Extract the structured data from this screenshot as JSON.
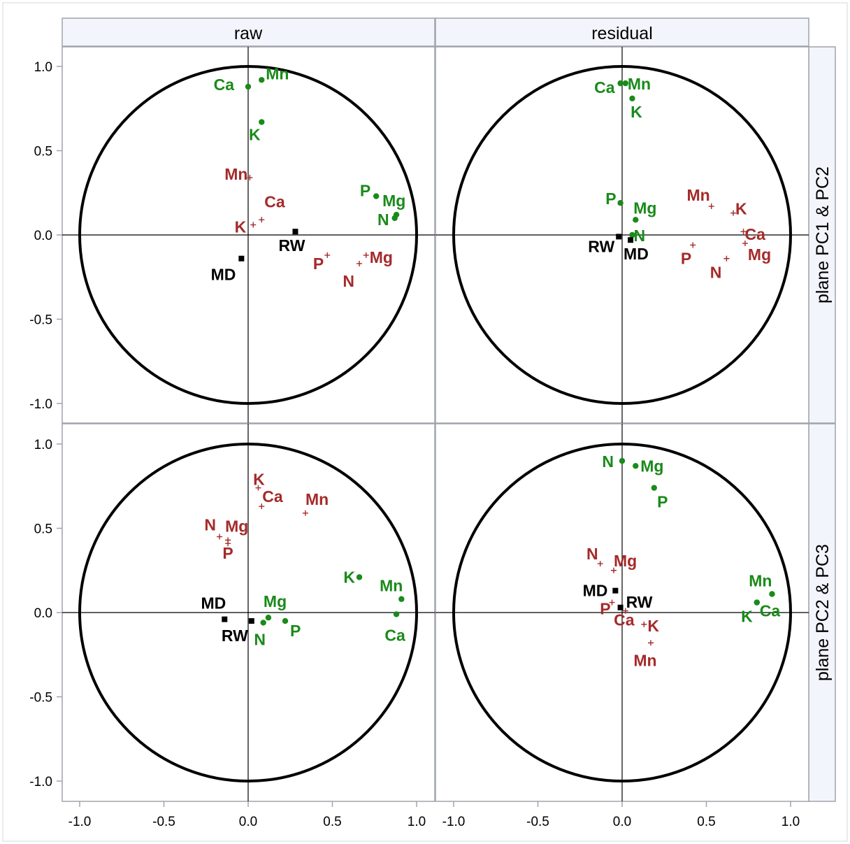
{
  "strips": {
    "col": [
      "raw",
      "residual"
    ],
    "row": [
      "plane PC1 & PC2",
      "plane PC2 & PC3"
    ]
  },
  "colors": {
    "variables_active": "#1a8a1a",
    "variables_supplementary": "#a52a2a",
    "samples": "#000000",
    "strip_fill": "#f2f5fc",
    "frame": "#a0a4aa"
  },
  "chart_data": {
    "type": "scatter",
    "axes": {
      "xlim": [
        -1.1,
        1.1
      ],
      "ylim": [
        -1.1,
        1.1
      ],
      "ticks": [
        -1.0,
        -0.5,
        0.0,
        0.5,
        1.0
      ],
      "tick_labels": [
        "-1.0",
        "-0.5",
        "0.0",
        "0.5",
        "1.0"
      ]
    },
    "panels": [
      {
        "col": "raw",
        "row": "plane PC1 & PC2",
        "green": [
          {
            "label": "Ca",
            "x": 0.0,
            "y": 0.88
          },
          {
            "label": "Mn",
            "x": 0.08,
            "y": 0.92
          },
          {
            "label": "K",
            "x": 0.08,
            "y": 0.67
          },
          {
            "label": "P",
            "x": 0.76,
            "y": 0.23
          },
          {
            "label": "Mg",
            "x": 0.88,
            "y": 0.12
          },
          {
            "label": "N",
            "x": 0.87,
            "y": 0.1
          }
        ],
        "red": [
          {
            "label": "Mn",
            "x": 0.01,
            "y": 0.34
          },
          {
            "label": "Ca",
            "x": 0.08,
            "y": 0.09
          },
          {
            "label": "K",
            "x": 0.03,
            "y": 0.06
          },
          {
            "label": "P",
            "x": 0.47,
            "y": -0.12
          },
          {
            "label": "Mg",
            "x": 0.7,
            "y": -0.12
          },
          {
            "label": "N",
            "x": 0.66,
            "y": -0.17
          }
        ],
        "black": [
          {
            "label": "RW",
            "x": 0.28,
            "y": 0.02
          },
          {
            "label": "MD",
            "x": -0.04,
            "y": -0.14
          }
        ]
      },
      {
        "col": "residual",
        "row": "plane PC1 & PC2",
        "green": [
          {
            "label": "Ca",
            "x": -0.01,
            "y": 0.9
          },
          {
            "label": "Mn",
            "x": 0.02,
            "y": 0.9
          },
          {
            "label": "K",
            "x": 0.06,
            "y": 0.81
          },
          {
            "label": "P",
            "x": -0.01,
            "y": 0.19
          },
          {
            "label": "Mg",
            "x": 0.08,
            "y": 0.09
          },
          {
            "label": "N",
            "x": 0.06,
            "y": 0.0
          }
        ],
        "red": [
          {
            "label": "Mn",
            "x": 0.53,
            "y": 0.17
          },
          {
            "label": "K",
            "x": 0.66,
            "y": 0.13
          },
          {
            "label": "Ca",
            "x": 0.72,
            "y": 0.02
          },
          {
            "label": "Mg",
            "x": 0.73,
            "y": -0.05
          },
          {
            "label": "P",
            "x": 0.42,
            "y": -0.06
          },
          {
            "label": "N",
            "x": 0.62,
            "y": -0.14
          }
        ],
        "black": [
          {
            "label": "RW",
            "x": -0.02,
            "y": -0.01
          },
          {
            "label": "MD",
            "x": 0.05,
            "y": -0.03
          }
        ]
      },
      {
        "col": "raw",
        "row": "plane PC2 & PC3",
        "green": [
          {
            "label": "K",
            "x": 0.66,
            "y": 0.21
          },
          {
            "label": "Mn",
            "x": 0.91,
            "y": 0.08
          },
          {
            "label": "Ca",
            "x": 0.88,
            "y": -0.01
          },
          {
            "label": "Mg",
            "x": 0.12,
            "y": -0.03
          },
          {
            "label": "N",
            "x": 0.09,
            "y": -0.06
          },
          {
            "label": "P",
            "x": 0.22,
            "y": -0.05
          }
        ],
        "red": [
          {
            "label": "K",
            "x": 0.06,
            "y": 0.74
          },
          {
            "label": "Ca",
            "x": 0.08,
            "y": 0.63
          },
          {
            "label": "Mn",
            "x": 0.34,
            "y": 0.59
          },
          {
            "label": "N",
            "x": -0.17,
            "y": 0.45
          },
          {
            "label": "Mg",
            "x": -0.12,
            "y": 0.43
          },
          {
            "label": "P",
            "x": -0.12,
            "y": 0.41
          }
        ],
        "black": [
          {
            "label": "MD",
            "x": -0.14,
            "y": -0.04
          },
          {
            "label": "RW",
            "x": 0.02,
            "y": -0.05
          }
        ]
      },
      {
        "col": "residual",
        "row": "plane PC2 & PC3",
        "green": [
          {
            "label": "N",
            "x": 0.0,
            "y": 0.9
          },
          {
            "label": "Mg",
            "x": 0.08,
            "y": 0.87
          },
          {
            "label": "P",
            "x": 0.19,
            "y": 0.74
          },
          {
            "label": "Mn",
            "x": 0.89,
            "y": 0.11
          },
          {
            "label": "Ca",
            "x": 0.8,
            "y": 0.06
          },
          {
            "label": "K",
            "x": 0.8,
            "y": 0.06
          }
        ],
        "red": [
          {
            "label": "N",
            "x": -0.13,
            "y": 0.29
          },
          {
            "label": "Mg",
            "x": -0.05,
            "y": 0.25
          },
          {
            "label": "P",
            "x": -0.06,
            "y": 0.06
          },
          {
            "label": "Ca",
            "x": 0.02,
            "y": 0.01
          },
          {
            "label": "K",
            "x": 0.13,
            "y": -0.07
          },
          {
            "label": "Mn",
            "x": 0.17,
            "y": -0.18
          }
        ],
        "black": [
          {
            "label": "MD",
            "x": -0.04,
            "y": 0.13
          },
          {
            "label": "RW",
            "x": -0.01,
            "y": 0.03
          }
        ]
      }
    ]
  }
}
